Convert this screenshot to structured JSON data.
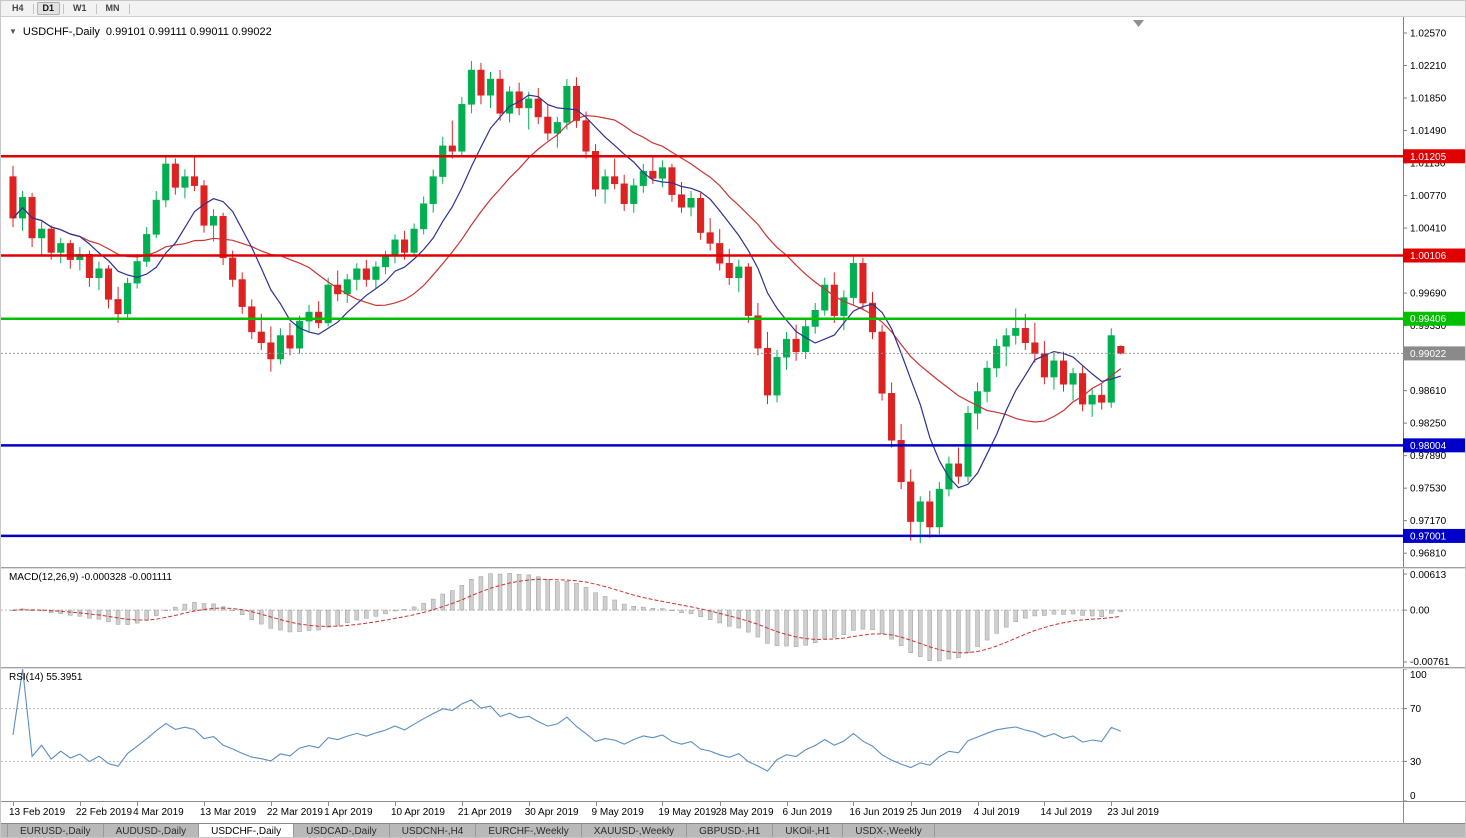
{
  "toolbar": {
    "timeframes": [
      "H4",
      "D1",
      "W1",
      "MN"
    ],
    "active": "D1"
  },
  "main_chart": {
    "collapse_glyph": "▼",
    "title": "USDCHF-,Daily",
    "ohlc": "0.99101 0.99111 0.99011 0.99022",
    "price_min": 0.96657,
    "price_max": 1.02747,
    "axis_ticks": [
      "1.02570",
      "1.02210",
      "1.01850",
      "1.01490",
      "1.01130",
      "1.00770",
      "1.00410",
      "0.99690",
      "0.99330",
      "0.98610",
      "0.98250",
      "0.97890",
      "0.97530",
      "0.97170",
      "0.96810"
    ],
    "levels": [
      {
        "price": 1.01205,
        "label": "1.01205",
        "color": "#e00000"
      },
      {
        "price": 1.00106,
        "label": "1.00106",
        "color": "#e00000"
      },
      {
        "price": 0.99406,
        "label": "0.99406",
        "color": "#00c000"
      },
      {
        "price": 0.98004,
        "label": "0.98004",
        "color": "#0000c8"
      },
      {
        "price": 0.97001,
        "label": "0.97001",
        "color": "#0000c8"
      }
    ],
    "current_price": {
      "value": 0.99022,
      "label": "0.99022",
      "color": "#8a8a8a"
    },
    "up_color": "#00b050",
    "down_color": "#dd2222",
    "ma_fast": {
      "period": 8,
      "color": "#2e3192"
    },
    "ma_slow": {
      "period": 17,
      "color": "#cc3333"
    }
  },
  "macd": {
    "label": "MACD(12,26,9)",
    "values": "-0.000328 -0.001111",
    "axis_ticks": [
      "0.00613",
      "0.00",
      "-0.00761"
    ],
    "params": {
      "fast": 12,
      "slow": 26,
      "signal": 9
    },
    "histogram_color": "#cfcfcf",
    "histogram_border": "#9f9f9f",
    "signal_color": "#cc3333"
  },
  "rsi": {
    "label": "RSI(14)",
    "value": "55.3951",
    "period": 14,
    "axis_ticks": [
      "100",
      "70",
      "30",
      "0"
    ],
    "levels": [
      70,
      30
    ],
    "line_color": "#5b8ec4"
  },
  "tabs": [
    "EURUSD-,Daily",
    "AUDUSD-,Daily",
    "USDCHF-,Daily",
    "USDCAD-,Daily",
    "USDCNH-,H4",
    "EURCHF-,Weekly",
    "XAUUSD-,Weekly",
    "GBPUSD-,H1",
    "UKOil-,H1",
    "USDX-,Weekly"
  ],
  "active_tab": "USDCHF-,Daily",
  "chart_data": {
    "type": "candlestick",
    "symbol": "USDCHF",
    "timeframe": "Daily",
    "dates_axis": [
      {
        "label": "13 Feb 2019",
        "index": 0
      },
      {
        "label": "22 Feb 2019",
        "index": 7
      },
      {
        "label": "4 Mar 2019",
        "index": 13
      },
      {
        "label": "13 Mar 2019",
        "index": 20
      },
      {
        "label": "22 Mar 2019",
        "index": 27
      },
      {
        "label": "1 Apr 2019",
        "index": 33
      },
      {
        "label": "10 Apr 2019",
        "index": 40
      },
      {
        "label": "21 Apr 2019",
        "index": 47
      },
      {
        "label": "30 Apr 2019",
        "index": 54
      },
      {
        "label": "9 May 2019",
        "index": 61
      },
      {
        "label": "19 May 2019",
        "index": 68
      },
      {
        "label": "28 May 2019",
        "index": 74
      },
      {
        "label": "6 Jun 2019",
        "index": 81
      },
      {
        "label": "16 Jun 2019",
        "index": 88
      },
      {
        "label": "25 Jun 2019",
        "index": 94
      },
      {
        "label": "4 Jul 2019",
        "index": 101
      },
      {
        "label": "14 Jul 2019",
        "index": 108
      },
      {
        "label": "23 Jul 2019",
        "index": 115
      }
    ],
    "candles": [
      [
        1.0098,
        1.011,
        1.0042,
        1.0052
      ],
      [
        1.0052,
        1.0082,
        1.0038,
        1.0075
      ],
      [
        1.0075,
        1.008,
        1.002,
        1.003
      ],
      [
        1.003,
        1.0048,
        1.001,
        1.004
      ],
      [
        1.004,
        1.0044,
        1.0006,
        1.0014
      ],
      [
        1.0014,
        1.003,
        1.0002,
        1.0024
      ],
      [
        1.0024,
        1.0028,
        0.9996,
        1.0006
      ],
      [
        1.0006,
        1.002,
        0.9994,
        1.0012
      ],
      [
        1.0012,
        1.0016,
        0.9976,
        0.9986
      ],
      [
        0.9986,
        1.0004,
        0.9972,
        0.9996
      ],
      [
        0.9996,
        1.0,
        0.9952,
        0.9962
      ],
      [
        0.9962,
        0.9976,
        0.9936,
        0.9946
      ],
      [
        0.9946,
        0.9986,
        0.9942,
        0.998
      ],
      [
        0.998,
        1.0012,
        0.9974,
        1.0004
      ],
      [
        1.0004,
        1.0042,
        0.9998,
        1.0034
      ],
      [
        1.0034,
        1.0082,
        1.003,
        1.0072
      ],
      [
        1.0072,
        1.0122,
        1.0064,
        1.0112
      ],
      [
        1.0112,
        1.0118,
        1.0078,
        1.0086
      ],
      [
        1.0086,
        1.0106,
        1.0074,
        1.0098
      ],
      [
        1.0098,
        1.012,
        1.0082,
        1.0088
      ],
      [
        1.0088,
        1.0094,
        1.0036,
        1.0044
      ],
      [
        1.0044,
        1.0062,
        1.0026,
        1.0054
      ],
      [
        1.0054,
        1.0058,
        1.0,
        1.0008
      ],
      [
        1.0008,
        1.0016,
        0.9976,
        0.9984
      ],
      [
        0.9984,
        0.9992,
        0.9946,
        0.9954
      ],
      [
        0.9954,
        0.9962,
        0.9918,
        0.9926
      ],
      [
        0.9926,
        0.9946,
        0.9906,
        0.9914
      ],
      [
        0.9914,
        0.9932,
        0.9882,
        0.9896
      ],
      [
        0.9896,
        0.993,
        0.989,
        0.9922
      ],
      [
        0.9922,
        0.9936,
        0.99,
        0.9908
      ],
      [
        0.9908,
        0.9944,
        0.9902,
        0.9938
      ],
      [
        0.9938,
        0.9956,
        0.9926,
        0.9948
      ],
      [
        0.9948,
        0.996,
        0.993,
        0.9936
      ],
      [
        0.9936,
        0.9986,
        0.9932,
        0.9978
      ],
      [
        0.9978,
        0.9994,
        0.996,
        0.9968
      ],
      [
        0.9968,
        0.999,
        0.9958,
        0.9984
      ],
      [
        0.9984,
        1.0002,
        0.9972,
        0.9996
      ],
      [
        0.9996,
        1.0006,
        0.9976,
        0.9984
      ],
      [
        0.9984,
        1.0004,
        0.9974,
        0.9998
      ],
      [
        0.9998,
        1.0016,
        0.999,
        1.001
      ],
      [
        1.001,
        1.0034,
        1.0002,
        1.0028
      ],
      [
        1.0028,
        1.0038,
        1.0006,
        1.0014
      ],
      [
        1.0014,
        1.0046,
        1.001,
        1.004
      ],
      [
        1.004,
        1.0076,
        1.0034,
        1.0068
      ],
      [
        1.0068,
        1.0106,
        1.0058,
        1.0098
      ],
      [
        1.0098,
        1.0142,
        1.009,
        1.0132
      ],
      [
        1.0132,
        1.016,
        1.0118,
        1.0126
      ],
      [
        1.0126,
        1.0186,
        1.012,
        1.0178
      ],
      [
        1.0178,
        1.0226,
        1.0168,
        1.0216
      ],
      [
        1.0216,
        1.0224,
        1.0178,
        1.0188
      ],
      [
        1.0188,
        1.0214,
        1.0174,
        1.0206
      ],
      [
        1.0206,
        1.0216,
        1.016,
        1.0168
      ],
      [
        1.0168,
        1.0198,
        1.0158,
        1.0192
      ],
      [
        1.0192,
        1.0202,
        1.0166,
        1.0174
      ],
      [
        1.0174,
        1.0192,
        1.015,
        1.0184
      ],
      [
        1.0184,
        1.0196,
        1.0156,
        1.0164
      ],
      [
        1.0164,
        1.0178,
        1.0138,
        1.0146
      ],
      [
        1.0146,
        1.0164,
        1.013,
        1.0158
      ],
      [
        1.0158,
        1.0206,
        1.015,
        1.0198
      ],
      [
        1.0198,
        1.0208,
        1.0152,
        1.016
      ],
      [
        1.016,
        1.017,
        1.0118,
        1.0126
      ],
      [
        1.0126,
        1.0134,
        1.0076,
        1.0084
      ],
      [
        1.0084,
        1.0106,
        1.0068,
        1.0098
      ],
      [
        1.0098,
        1.0118,
        1.0084,
        1.009
      ],
      [
        1.009,
        1.01,
        1.006,
        1.0068
      ],
      [
        1.0068,
        1.0096,
        1.0058,
        1.0088
      ],
      [
        1.0088,
        1.0112,
        1.008,
        1.0104
      ],
      [
        1.0104,
        1.0122,
        1.009,
        1.0096
      ],
      [
        1.0096,
        1.0116,
        1.0086,
        1.0108
      ],
      [
        1.0108,
        1.0112,
        1.007,
        1.0078
      ],
      [
        1.0078,
        1.0092,
        1.0058,
        1.0064
      ],
      [
        1.0064,
        1.0082,
        1.0054,
        1.0074
      ],
      [
        1.0074,
        1.008,
        1.0028,
        1.0036
      ],
      [
        1.0036,
        1.0052,
        1.0016,
        1.0024
      ],
      [
        1.0024,
        1.004,
        0.9994,
        1.0002
      ],
      [
        1.0002,
        1.0018,
        0.9978,
        0.9986
      ],
      [
        0.9986,
        1.0006,
        0.997,
        0.9998
      ],
      [
        0.9998,
        1.0002,
        0.9936,
        0.9944
      ],
      [
        0.9944,
        0.9958,
        0.99,
        0.9908
      ],
      [
        0.9908,
        0.9926,
        0.9846,
        0.9856
      ],
      [
        0.9856,
        0.9906,
        0.9848,
        0.9898
      ],
      [
        0.9898,
        0.9926,
        0.9884,
        0.9918
      ],
      [
        0.9918,
        0.9934,
        0.9894,
        0.9904
      ],
      [
        0.9904,
        0.994,
        0.9896,
        0.9932
      ],
      [
        0.9932,
        0.9958,
        0.9924,
        0.995
      ],
      [
        0.995,
        0.9986,
        0.9944,
        0.9978
      ],
      [
        0.9978,
        0.9992,
        0.9936,
        0.9944
      ],
      [
        0.9944,
        0.9972,
        0.9928,
        0.9964
      ],
      [
        0.9964,
        1.001,
        0.9956,
        1.0002
      ],
      [
        1.0002,
        1.0008,
        0.995,
        0.9958
      ],
      [
        0.9958,
        0.997,
        0.9918,
        0.9926
      ],
      [
        0.9926,
        0.9934,
        0.985,
        0.9858
      ],
      [
        0.9858,
        0.987,
        0.9798,
        0.9806
      ],
      [
        0.9806,
        0.9824,
        0.9752,
        0.976
      ],
      [
        0.976,
        0.9774,
        0.9695,
        0.9716
      ],
      [
        0.9716,
        0.9744,
        0.9692,
        0.9738
      ],
      [
        0.9738,
        0.975,
        0.9698,
        0.971
      ],
      [
        0.971,
        0.976,
        0.9702,
        0.9752
      ],
      [
        0.9752,
        0.9788,
        0.9744,
        0.978
      ],
      [
        0.978,
        0.9798,
        0.9758,
        0.9766
      ],
      [
        0.9766,
        0.9844,
        0.976,
        0.9836
      ],
      [
        0.9836,
        0.987,
        0.9818,
        0.986
      ],
      [
        0.986,
        0.9894,
        0.9848,
        0.9886
      ],
      [
        0.9886,
        0.9918,
        0.9876,
        0.991
      ],
      [
        0.991,
        0.993,
        0.9888,
        0.9922
      ],
      [
        0.9922,
        0.9952,
        0.9912,
        0.993
      ],
      [
        0.993,
        0.9946,
        0.9906,
        0.9914
      ],
      [
        0.9914,
        0.9936,
        0.9892,
        0.9902
      ],
      [
        0.9902,
        0.9916,
        0.9868,
        0.9876
      ],
      [
        0.9876,
        0.9902,
        0.9862,
        0.9894
      ],
      [
        0.9894,
        0.9904,
        0.986,
        0.9868
      ],
      [
        0.9868,
        0.9886,
        0.985,
        0.988
      ],
      [
        0.988,
        0.9888,
        0.9838,
        0.9846
      ],
      [
        0.9846,
        0.9864,
        0.9832,
        0.9856
      ],
      [
        0.9856,
        0.9868,
        0.984,
        0.9848
      ],
      [
        0.9848,
        0.993,
        0.9842,
        0.9922
      ],
      [
        0.99101,
        0.99111,
        0.99011,
        0.99022
      ]
    ]
  }
}
